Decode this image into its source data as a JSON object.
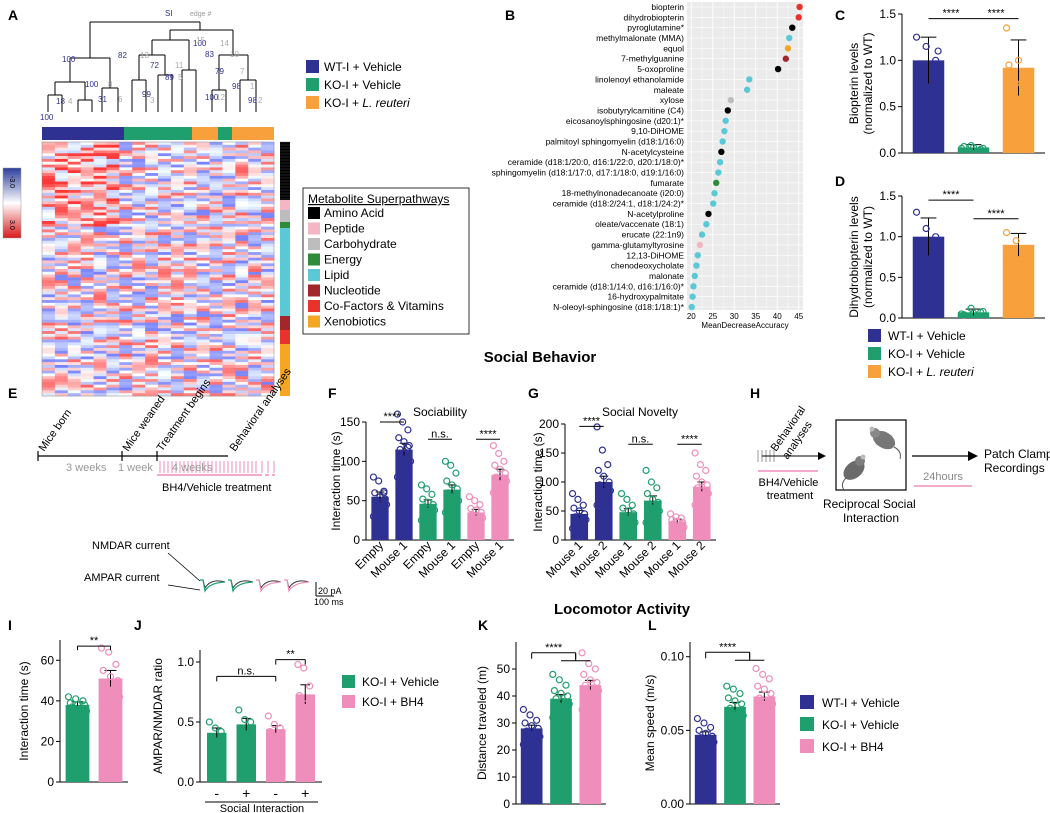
{
  "colors": {
    "wt_vehicle": "#2e3192",
    "ko_vehicle": "#1f9e6e",
    "ko_reuteri": "#f7a03c",
    "ko_bh4": "#ef8dbb",
    "amino_acid": "#000000",
    "peptide": "#f4b6c2",
    "carbohydrate": "#bdbdbd",
    "energy": "#2e8b3a",
    "lipid": "#5bc8d6",
    "nucleotide": "#a3262a",
    "cofactors": "#e8322c",
    "xenobiotics": "#f5a623"
  },
  "sections": {
    "social_behavior": "Social Behavior",
    "locomotor_activity": "Locomotor Activity"
  },
  "panel_letters": [
    "A",
    "B",
    "C",
    "D",
    "E",
    "F",
    "G",
    "H",
    "I",
    "J",
    "K",
    "L"
  ],
  "panelA": {
    "tree_header_si": "SI",
    "tree_header_edge": "edge #",
    "bootstrap_blue": [
      "100",
      "18",
      "100",
      "31",
      "100",
      "82",
      "72",
      "89",
      "99",
      "100",
      "83",
      "79",
      "98",
      "98",
      "100"
    ],
    "bootstrap_grey": [
      "4",
      "8",
      "6",
      "15",
      "13",
      "11",
      "5",
      "3",
      "14",
      "10",
      "7",
      "1",
      "2",
      "12"
    ],
    "scale_top": "-3.0",
    "scale_bottom": "3.0",
    "legend": [
      {
        "label": "WT-I + Vehicle",
        "color": "#2e3192"
      },
      {
        "label": "KO-I + Vehicle",
        "color": "#1f9e6e"
      },
      {
        "label": "KO-I + ",
        "italic": "L. reuteri",
        "color": "#f7a03c"
      }
    ],
    "superpathway_title": "Metabolite Superpathways",
    "superpathways": [
      {
        "label": "Amino Acid",
        "color": "#000000"
      },
      {
        "label": "Peptide",
        "color": "#f4b6c2"
      },
      {
        "label": "Carbohydrate",
        "color": "#bdbdbd"
      },
      {
        "label": "Energy",
        "color": "#2e8b3a"
      },
      {
        "label": "Lipid",
        "color": "#5bc8d6"
      },
      {
        "label": "Nucleotide",
        "color": "#a3262a"
      },
      {
        "label": "Co-Factors & Vitamins",
        "color": "#e8322c"
      },
      {
        "label": "Xenobiotics",
        "color": "#f5a623"
      }
    ]
  },
  "chart_data": [
    {
      "id": "B",
      "type": "scatter",
      "xlabel": "MeanDecreaseAccuracy",
      "xlim": [
        19,
        46
      ],
      "xticks": [
        20,
        25,
        30,
        35,
        40,
        45
      ],
      "metabolites": [
        {
          "name": "biopterin",
          "value": 45.2,
          "class": "cofactors"
        },
        {
          "name": "dihydrobiopterin",
          "value": 45.0,
          "class": "cofactors"
        },
        {
          "name": "pyroglutamine*",
          "value": 43.5,
          "class": "amino_acid"
        },
        {
          "name": "methylmalonate (MMA)",
          "value": 42.8,
          "class": "lipid"
        },
        {
          "name": "equol",
          "value": 42.5,
          "class": "xenobiotics"
        },
        {
          "name": "7-methylguanine",
          "value": 42.0,
          "class": "nucleotide"
        },
        {
          "name": "5-oxoproline",
          "value": 40.2,
          "class": "amino_acid"
        },
        {
          "name": "linolenoyl ethanolamide",
          "value": 33.5,
          "class": "lipid"
        },
        {
          "name": "maleate",
          "value": 33.0,
          "class": "lipid"
        },
        {
          "name": "xylose",
          "value": 29.2,
          "class": "carbohydrate"
        },
        {
          "name": "isobutyrylcarnitine (C4)",
          "value": 28.5,
          "class": "amino_acid"
        },
        {
          "name": "eicosanoylsphingosine (d20:1)*",
          "value": 28.0,
          "class": "lipid"
        },
        {
          "name": "9,10-DiHOME",
          "value": 27.7,
          "class": "lipid"
        },
        {
          "name": "palmitoyl sphingomyelin (d18:1/16:0)",
          "value": 27.3,
          "class": "lipid"
        },
        {
          "name": "N-acetylcysteine",
          "value": 27.0,
          "class": "amino_acid"
        },
        {
          "name": "ceramide (d18:1/20:0, d16:1/22:0, d20:1/18:0)*",
          "value": 26.7,
          "class": "lipid"
        },
        {
          "name": "sphingomyelin (d18:1/17:0, d17:1/18:0, d19:1/16:0)",
          "value": 26.3,
          "class": "lipid"
        },
        {
          "name": "fumarate",
          "value": 25.8,
          "class": "energy"
        },
        {
          "name": "18-methylnonadecanoate (i20:0)",
          "value": 25.4,
          "class": "lipid"
        },
        {
          "name": "ceramide (d18:2/24:1, d18:1/24:2)*",
          "value": 25.1,
          "class": "lipid"
        },
        {
          "name": "N-acetylproline",
          "value": 24.0,
          "class": "amino_acid"
        },
        {
          "name": "oleate/vaccenate (18:1)",
          "value": 23.5,
          "class": "lipid"
        },
        {
          "name": "erucate (22:1n9)",
          "value": 22.5,
          "class": "lipid"
        },
        {
          "name": "gamma-glutamyltyrosine",
          "value": 22.0,
          "class": "peptide"
        },
        {
          "name": "12,13-DiHOME",
          "value": 21.5,
          "class": "lipid"
        },
        {
          "name": "chenodeoxycholate",
          "value": 21.2,
          "class": "lipid"
        },
        {
          "name": "malonate",
          "value": 20.8,
          "class": "lipid"
        },
        {
          "name": "ceramide (d18:1/14:0, d16:1/16:0)*",
          "value": 20.5,
          "class": "lipid"
        },
        {
          "name": "16-hydroxypalmitate",
          "value": 20.3,
          "class": "lipid"
        },
        {
          "name": "N-oleoyl-sphingosine (d18:1/18:1)*",
          "value": 20.1,
          "class": "lipid"
        }
      ]
    },
    {
      "id": "C",
      "type": "bar",
      "ylabel": "Biopterin levels\n(normalized to WT)",
      "ylim": [
        0,
        1.5
      ],
      "yticks": [
        "0.0",
        "0.5",
        "1.0",
        "1.5"
      ],
      "categories": [
        "WT-I + Vehicle",
        "KO-I + Vehicle",
        "KO-I + L. reuteri"
      ],
      "values": [
        1.0,
        0.06,
        0.92
      ],
      "errors": [
        0.25,
        0.03,
        0.3
      ],
      "points": [
        [
          1.25,
          1.15,
          1.0,
          0.8,
          0.6,
          1.1
        ],
        [
          0.05,
          0.08,
          0.04,
          0.07,
          0.06,
          0.05
        ],
        [
          1.35,
          0.75,
          0.65,
          0.95,
          1.0
        ]
      ],
      "significance": [
        "****",
        "****"
      ]
    },
    {
      "id": "D",
      "type": "bar",
      "ylabel": "Dihydrobiopterin levels\n(normalized to WT)",
      "ylim": [
        0,
        1.5
      ],
      "yticks": [
        "0.0",
        "0.5",
        "1.0",
        "1.5"
      ],
      "categories": [
        "WT-I + Vehicle",
        "KO-I + Vehicle",
        "KO-I + L. reuteri"
      ],
      "values": [
        1.0,
        0.07,
        0.9
      ],
      "errors": [
        0.23,
        0.04,
        0.14
      ],
      "points": [
        [
          1.3,
          1.1,
          1.0,
          0.75,
          0.65,
          0.9
        ],
        [
          0.05,
          0.12,
          0.07,
          0.04,
          0.06,
          0.08
        ],
        [
          1.05,
          0.95,
          0.8,
          0.75
        ]
      ],
      "significance": [
        "****",
        "****"
      ],
      "legend": [
        "WT-I + Vehicle",
        "KO-I + Vehicle",
        "KO-I + "
      ],
      "legend_italic": "L. reuteri"
    },
    {
      "id": "F",
      "type": "bar",
      "title": "Sociability",
      "ylabel": "Interaction time (s)",
      "ylim": [
        0,
        150
      ],
      "yticks": [
        "0",
        "50",
        "100",
        "150"
      ],
      "categories": [
        "Empty",
        "Mouse 1",
        "Empty",
        "Mouse 1",
        "Empty",
        "Mouse 1"
      ],
      "values": [
        55,
        115,
        46,
        64,
        35,
        83
      ],
      "errors": [
        6,
        8,
        5,
        6,
        4,
        7
      ],
      "points": [
        [
          80,
          75,
          62,
          60,
          55,
          52,
          50,
          48,
          45,
          40,
          35,
          30,
          25,
          60
        ],
        [
          160,
          150,
          140,
          130,
          125,
          120,
          115,
          110,
          100,
          95,
          90,
          80,
          70,
          118
        ],
        [
          70,
          65,
          58,
          52,
          48,
          45,
          42,
          40,
          38,
          35,
          30,
          25
        ],
        [
          100,
          95,
          85,
          75,
          70,
          65,
          60,
          55,
          50,
          45,
          40,
          35
        ],
        [
          55,
          50,
          45,
          40,
          38,
          35,
          32,
          30,
          28,
          25,
          20
        ],
        [
          120,
          110,
          100,
          95,
          90,
          85,
          80,
          78,
          75,
          70,
          65,
          60
        ]
      ],
      "significance": [
        {
          "label": "****"
        },
        {
          "label": "n.s."
        },
        {
          "label": "****"
        }
      ]
    },
    {
      "id": "G",
      "type": "bar",
      "title": "Social Novelty",
      "ylabel": "Interaction time (s)",
      "ylim": [
        0,
        200
      ],
      "yticks": [
        "0",
        "50",
        "100",
        "150",
        "200"
      ],
      "categories": [
        "Mouse 1",
        "Mouse 2",
        "Mouse 1",
        "Mouse 2",
        "Mouse 1",
        "Mouse 2"
      ],
      "values": [
        45,
        100,
        48,
        68,
        32,
        92
      ],
      "errors": [
        6,
        10,
        6,
        8,
        4,
        8
      ],
      "points": [
        [
          80,
          70,
          60,
          55,
          50,
          45,
          40,
          38,
          35,
          30,
          25,
          20,
          15
        ],
        [
          195,
          155,
          130,
          120,
          110,
          100,
          95,
          90,
          85,
          75,
          70,
          60,
          50
        ],
        [
          80,
          70,
          60,
          55,
          50,
          45,
          40,
          35,
          30,
          25,
          20
        ],
        [
          120,
          100,
          90,
          80,
          70,
          65,
          60,
          55,
          50,
          45,
          40,
          30
        ],
        [
          45,
          40,
          38,
          35,
          32,
          30,
          28,
          25,
          22
        ],
        [
          150,
          130,
          120,
          110,
          100,
          95,
          90,
          85,
          80,
          75,
          70,
          60
        ]
      ],
      "significance": [
        {
          "label": "****"
        },
        {
          "label": "n.s."
        },
        {
          "label": "****"
        }
      ]
    },
    {
      "id": "I",
      "type": "bar",
      "ylabel": "Interaction time (s)",
      "ylim": [
        0,
        70
      ],
      "yticks": [
        "0",
        "20",
        "40",
        "60"
      ],
      "categories": [
        "KO-I + Vehicle",
        "KO-I + BH4"
      ],
      "values": [
        38,
        51
      ],
      "errors": [
        1.5,
        4
      ],
      "points": [
        [
          42,
          41,
          40,
          39,
          38,
          38,
          37,
          36,
          35,
          34
        ],
        [
          66,
          64,
          58,
          55,
          52,
          50,
          48,
          45,
          42,
          38
        ]
      ],
      "significance": [
        "**"
      ]
    },
    {
      "id": "J",
      "type": "bar",
      "ylabel": "AMPAR/NMDAR ratio",
      "ylim": [
        0,
        1.1
      ],
      "yticks": [
        "0.0",
        "0.5",
        "1.0"
      ],
      "categories": [
        "-",
        "+",
        "-",
        "+"
      ],
      "xlabel": "Social Interaction",
      "values": [
        0.41,
        0.48,
        0.44,
        0.73
      ],
      "errors": [
        0.04,
        0.05,
        0.03,
        0.08
      ],
      "points": [
        [
          0.5,
          0.45,
          0.42,
          0.38,
          0.33
        ],
        [
          0.6,
          0.52,
          0.5,
          0.45,
          0.4
        ],
        [
          0.55,
          0.48,
          0.45,
          0.42,
          0.38,
          0.35
        ],
        [
          0.98,
          0.95,
          0.8,
          0.72,
          0.65,
          0.55
        ]
      ],
      "significance": [
        "n.s.",
        "**"
      ],
      "legend": [
        "KO-I + Vehicle",
        "KO-I + BH4"
      ]
    },
    {
      "id": "K",
      "type": "bar",
      "ylabel": "Distance traveled (m)",
      "ylim": [
        0,
        60
      ],
      "yticks": [
        "0",
        "10",
        "20",
        "30",
        "40",
        "50"
      ],
      "categories": [
        "WT-I + Vehicle",
        "KO-I + Vehicle",
        "KO-I + BH4"
      ],
      "values": [
        28,
        39,
        44
      ],
      "errors": [
        1.2,
        1.5,
        1.8
      ],
      "points": [
        [
          35,
          33,
          31,
          30,
          29,
          28,
          27,
          26,
          25,
          24,
          23,
          22
        ],
        [
          48,
          46,
          44,
          42,
          41,
          40,
          39,
          38,
          37,
          36,
          34,
          32
        ],
        [
          56,
          52,
          50,
          48,
          46,
          45,
          44,
          43,
          42,
          40,
          38,
          35
        ]
      ],
      "significance": [
        "****"
      ]
    },
    {
      "id": "L",
      "type": "bar",
      "ylabel": "Mean speed (m/s)",
      "ylim": [
        0,
        0.11
      ],
      "yticks": [
        "0.00",
        "0.05",
        "0.10"
      ],
      "categories": [
        "WT-I + Vehicle",
        "KO-I + Vehicle",
        "KO-I + BH4"
      ],
      "values": [
        0.047,
        0.066,
        0.073
      ],
      "errors": [
        0.002,
        0.003,
        0.003
      ],
      "points": [
        [
          0.058,
          0.055,
          0.052,
          0.05,
          0.048,
          0.046,
          0.045,
          0.044,
          0.042,
          0.04,
          0.038
        ],
        [
          0.08,
          0.078,
          0.075,
          0.072,
          0.07,
          0.068,
          0.065,
          0.062,
          0.06,
          0.058,
          0.055
        ],
        [
          0.092,
          0.088,
          0.085,
          0.08,
          0.078,
          0.075,
          0.072,
          0.07,
          0.068,
          0.065,
          0.06
        ]
      ],
      "significance": [
        "****"
      ],
      "legend": [
        "WT-I + Vehicle",
        "KO-I + Vehicle",
        "KO-I + BH4"
      ]
    }
  ],
  "panelE": {
    "events": [
      "Mice born",
      "Mice weaned",
      "Treatment begins",
      "Behavioral analyses"
    ],
    "durations": [
      "3 weeks",
      "1 week",
      "4 weeks"
    ],
    "treatment": "BH4/Vehicle treatment",
    "nmdar": "NMDAR current",
    "ampar": "AMPAR current",
    "scale_pa": "20 pA",
    "scale_ms": "100 ms"
  },
  "panelH": {
    "behavioral": "Behavioral\nanalyses",
    "treatment": "BH4/Vehicle\ntreatment",
    "interaction": "Reciprocal Social\nInteraction",
    "hours": "24hours",
    "patch": "Patch Clamp\nRecordings"
  }
}
